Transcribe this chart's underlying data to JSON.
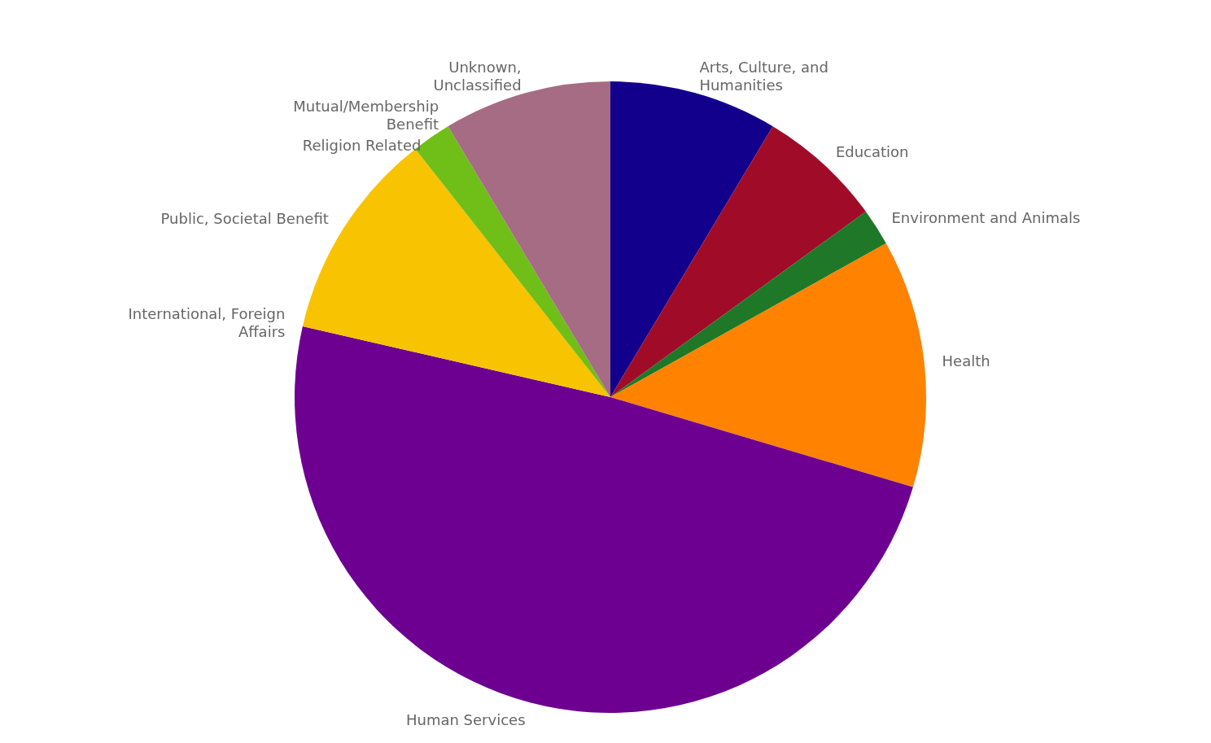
{
  "chart_data": {
    "type": "pie",
    "categories": [
      "Arts, Culture, and Humanities",
      "Education",
      "Environment and Animals",
      "Health",
      "Human Services",
      "International, Foreign Affairs",
      "Public, Societal Benefit",
      "Religion Related",
      "Mutual/Membership Benefit",
      "Unknown, Unclassified"
    ],
    "values": [
      8.6,
      6.4,
      1.9,
      12.7,
      49.0,
      0,
      10.8,
      2.0,
      0,
      8.6
    ],
    "colors": [
      "#12008c",
      "#a00c28",
      "#1e7828",
      "#ff8200",
      "#6e0091",
      "#3c64b4",
      "#f8c300",
      "#70be18",
      "#00a0b0",
      "#a66c84"
    ]
  }
}
